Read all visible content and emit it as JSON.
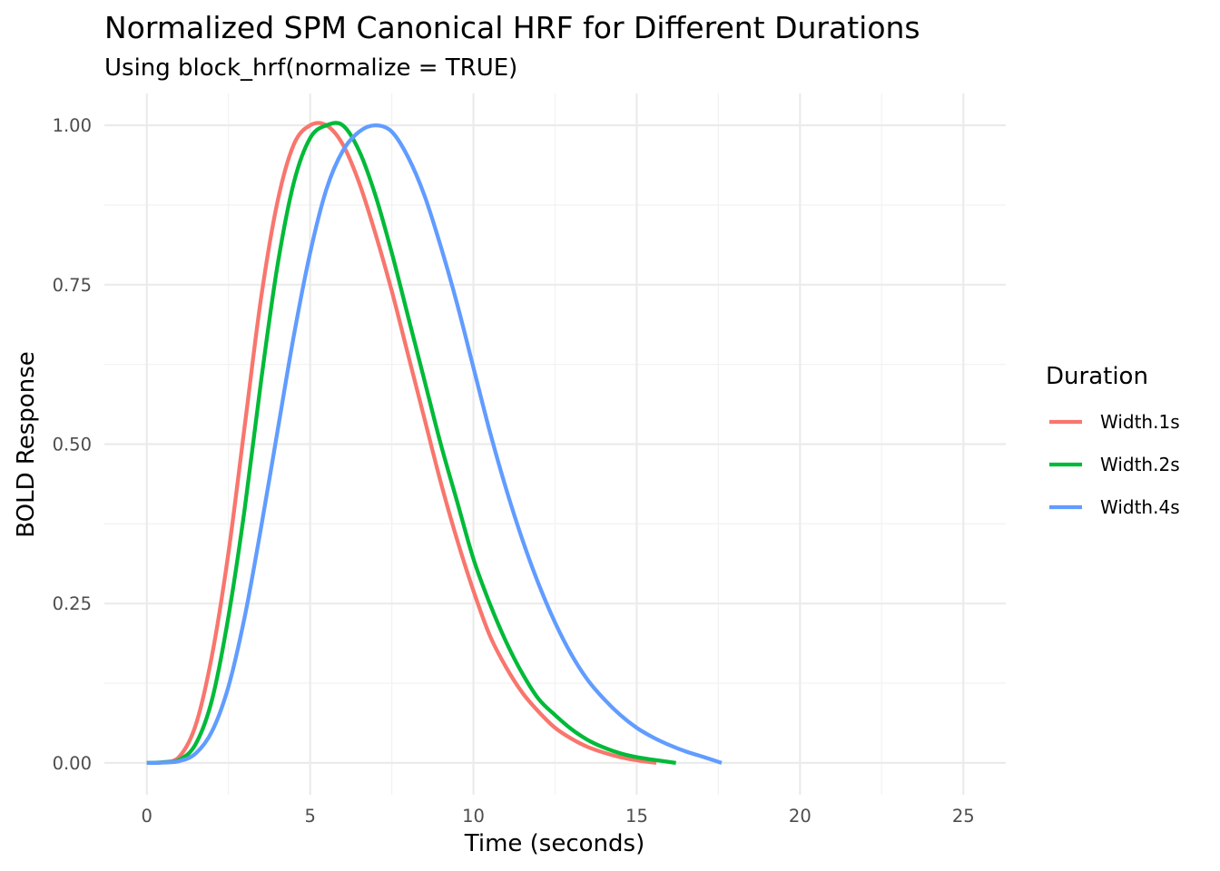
{
  "chart_data": {
    "type": "line",
    "title": "Normalized SPM Canonical HRF for Different Durations",
    "subtitle": "Using block_hrf(normalize = TRUE)",
    "xlabel": "Time (seconds)",
    "ylabel": "BOLD Response",
    "xlim": [
      -1.3,
      26.3
    ],
    "ylim": [
      -0.05,
      1.05
    ],
    "x_ticks": [
      0,
      5,
      10,
      15,
      20,
      25
    ],
    "x_tick_labels": [
      "0",
      "5",
      "10",
      "15",
      "20",
      "25"
    ],
    "y_ticks": [
      0,
      0.25,
      0.5,
      0.75,
      1.0
    ],
    "y_tick_labels": [
      "0.00",
      "0.25",
      "0.50",
      "0.75",
      "1.00"
    ],
    "grid": true,
    "legend": {
      "title": "Duration",
      "position": "right"
    },
    "series": [
      {
        "name": "Width.1s",
        "color": "#F8766D",
        "x": [
          0,
          0.5,
          1,
          1.5,
          2,
          2.5,
          3,
          3.5,
          4,
          4.5,
          5,
          5.5,
          6,
          6.5,
          7,
          7.5,
          8,
          8.5,
          9,
          9.5,
          10,
          10.5,
          11,
          11.5,
          12,
          12.5,
          13,
          13.5,
          14,
          14.5,
          15,
          15.6
        ],
        "y": [
          0,
          0.001,
          0.01,
          0.06,
          0.17,
          0.33,
          0.53,
          0.73,
          0.88,
          0.97,
          1.0,
          1.0,
          0.97,
          0.91,
          0.83,
          0.74,
          0.64,
          0.54,
          0.44,
          0.35,
          0.27,
          0.2,
          0.15,
          0.11,
          0.08,
          0.055,
          0.038,
          0.025,
          0.016,
          0.009,
          0.004,
          0.0
        ]
      },
      {
        "name": "Width.2s",
        "color": "#00BA38",
        "x": [
          0,
          0.5,
          1,
          1.5,
          2,
          2.5,
          3,
          3.5,
          4,
          4.5,
          5,
          5.5,
          6,
          6.5,
          7,
          7.5,
          8,
          8.5,
          9,
          9.5,
          10,
          10.5,
          11,
          11.5,
          12,
          12.5,
          13,
          13.5,
          14,
          14.5,
          15,
          15.5,
          16.2
        ],
        "y": [
          0,
          0.001,
          0.005,
          0.03,
          0.1,
          0.23,
          0.4,
          0.6,
          0.78,
          0.91,
          0.98,
          1.0,
          1.0,
          0.96,
          0.89,
          0.8,
          0.7,
          0.6,
          0.5,
          0.41,
          0.32,
          0.25,
          0.19,
          0.14,
          0.1,
          0.075,
          0.053,
          0.036,
          0.024,
          0.015,
          0.009,
          0.005,
          0.0
        ]
      },
      {
        "name": "Width.4s",
        "color": "#619CFF",
        "x": [
          0,
          0.5,
          1,
          1.5,
          2,
          2.5,
          3,
          3.5,
          4,
          4.5,
          5,
          5.5,
          6,
          6.5,
          7,
          7.5,
          8,
          8.5,
          9,
          9.5,
          10,
          10.5,
          11,
          11.5,
          12,
          12.5,
          13,
          13.5,
          14,
          14.5,
          15,
          15.5,
          16,
          16.5,
          17,
          17.6
        ],
        "y": [
          0,
          0.0005,
          0.003,
          0.015,
          0.05,
          0.12,
          0.23,
          0.37,
          0.52,
          0.67,
          0.8,
          0.9,
          0.96,
          0.99,
          1.0,
          0.99,
          0.95,
          0.89,
          0.81,
          0.72,
          0.62,
          0.52,
          0.43,
          0.35,
          0.28,
          0.22,
          0.17,
          0.13,
          0.1,
          0.075,
          0.055,
          0.04,
          0.028,
          0.018,
          0.01,
          0.0
        ]
      }
    ]
  }
}
